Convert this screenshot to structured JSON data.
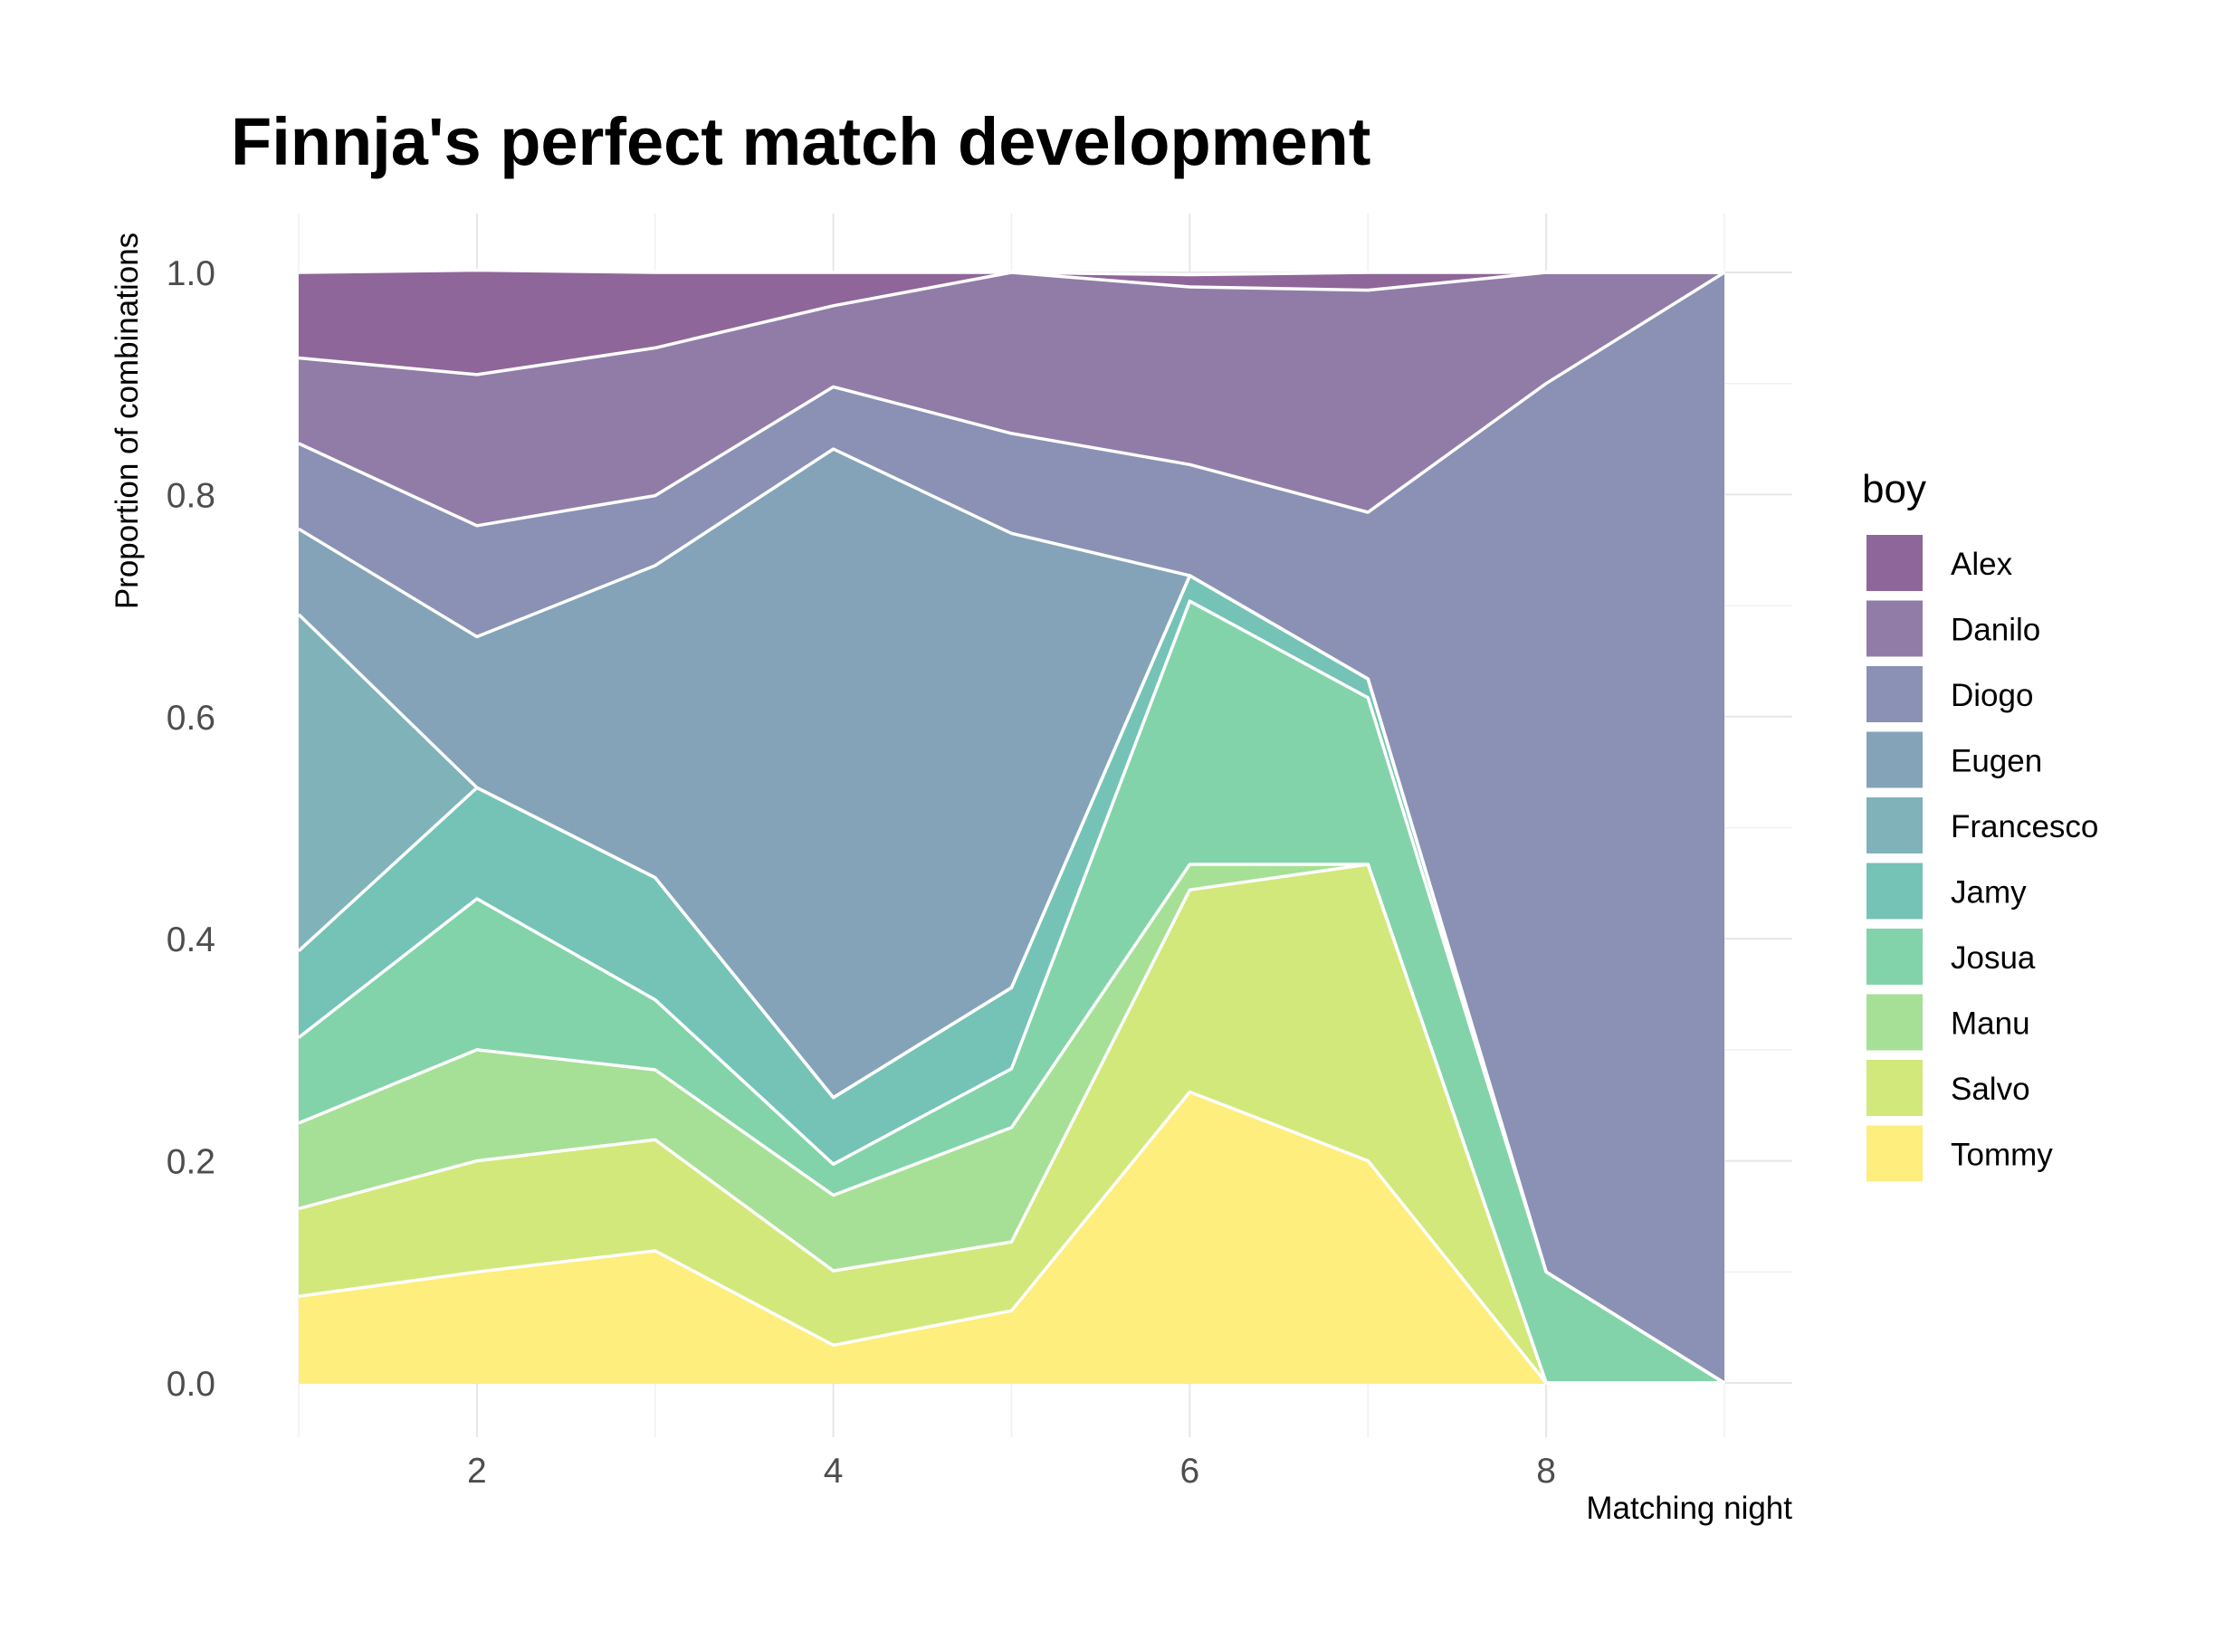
{
  "chart_data": {
    "type": "area",
    "title": "Finnja's perfect match development",
    "xlabel": "Matching night",
    "ylabel": "Proportion of combinations",
    "xlim": [
      1,
      9
    ],
    "ylim": [
      0,
      1
    ],
    "x_ticks": [
      "2",
      "4",
      "6",
      "8"
    ],
    "y_ticks": [
      "0.0",
      "0.2",
      "0.4",
      "0.6",
      "0.8",
      "1.0"
    ],
    "stacked": true,
    "grid": true,
    "legend_title": "boy",
    "legend_position": "right",
    "x": [
      1,
      2,
      3,
      4,
      5,
      6,
      7,
      8,
      9
    ],
    "series": [
      {
        "name": "Alex",
        "color": "#8F6699",
        "values": [
          0.077,
          0.094,
          0.068,
          0.03,
          0.0,
          0.011,
          0.016,
          0.0,
          0.0
        ]
      },
      {
        "name": "Danilo",
        "color": "#917CA8",
        "values": [
          0.077,
          0.136,
          0.133,
          0.073,
          0.145,
          0.16,
          0.2,
          0.1,
          0.0
        ]
      },
      {
        "name": "Diogo",
        "color": "#8A91B4",
        "values": [
          0.077,
          0.1,
          0.063,
          0.056,
          0.09,
          0.1,
          0.15,
          0.8,
          1.0
        ]
      },
      {
        "name": "Eugen",
        "color": "#84A3B8",
        "values": [
          0.077,
          0.136,
          0.281,
          0.584,
          0.409,
          0.0,
          0.0,
          0.0,
          0.0
        ]
      },
      {
        "name": "Francesco",
        "color": "#7FB3B9",
        "values": [
          0.303,
          0.0,
          0.0,
          0.0,
          0.0,
          0.0,
          0.0,
          0.0,
          0.0
        ]
      },
      {
        "name": "Jamy",
        "color": "#74C3B6",
        "values": [
          0.078,
          0.1,
          0.11,
          0.06,
          0.073,
          0.023,
          0.017,
          0.0,
          0.0
        ]
      },
      {
        "name": "Josua",
        "color": "#83D3AA",
        "values": [
          0.077,
          0.136,
          0.063,
          0.028,
          0.053,
          0.237,
          0.15,
          0.1,
          0.0
        ]
      },
      {
        "name": "Manu",
        "color": "#A6E096",
        "values": [
          0.077,
          0.1,
          0.063,
          0.068,
          0.103,
          0.023,
          0.0,
          0.0,
          0.0
        ]
      },
      {
        "name": "Salvo",
        "color": "#D2E87B",
        "values": [
          0.079,
          0.1,
          0.1,
          0.067,
          0.062,
          0.182,
          0.267,
          0.0,
          0.0
        ]
      },
      {
        "name": "Tommy",
        "color": "#FDEE7D",
        "values": [
          0.078,
          0.1,
          0.119,
          0.034,
          0.065,
          0.262,
          0.2,
          0.0,
          0.0
        ]
      }
    ]
  }
}
